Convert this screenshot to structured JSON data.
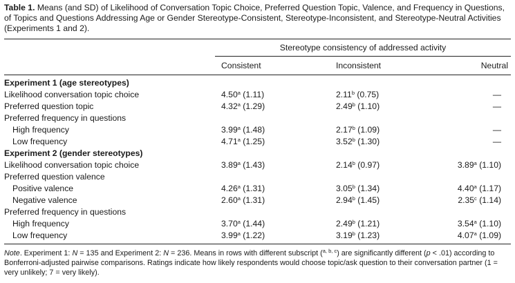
{
  "caption": {
    "label": "Table 1.",
    "text": "Means (and SD) of Likelihood of Conversation Topic Choice, Preferred Question Topic, Valence, and Frequency in Questions, of Topics and Questions Addressing Age or Gender Stereotype-Consistent, Stereotype-Inconsistent, and Stereotype-Neutral Activities (Experiments 1 and 2)."
  },
  "column_spanner": "Stereotype consistency of addressed activity",
  "columns": [
    "Consistent",
    "Inconsistent",
    "Neutral"
  ],
  "rows": [
    {
      "type": "section",
      "label": "Experiment 1 (age stereotypes)"
    },
    {
      "type": "data",
      "label": "Likelihood conversation topic choice",
      "indent": false,
      "cells": [
        {
          "mean": "4.50",
          "sup": "a",
          "sd": "(1.11)"
        },
        {
          "mean": "2.11",
          "sup": "b",
          "sd": "(0.75)"
        },
        {
          "text": "—"
        }
      ]
    },
    {
      "type": "data",
      "label": "Preferred question topic",
      "indent": false,
      "cells": [
        {
          "mean": "4.32",
          "sup": "a",
          "sd": "(1.29)"
        },
        {
          "mean": "2.49",
          "sup": "b",
          "sd": "(1.10)"
        },
        {
          "text": "—"
        }
      ]
    },
    {
      "type": "sub",
      "label": "Preferred frequency in questions"
    },
    {
      "type": "data",
      "label": "High frequency",
      "indent": true,
      "cells": [
        {
          "mean": "3.99",
          "sup": "a",
          "sd": "(1.48)"
        },
        {
          "mean": "2.17",
          "sup": "b",
          "sd": "(1.09)"
        },
        {
          "text": "—"
        }
      ]
    },
    {
      "type": "data",
      "label": "Low frequency",
      "indent": true,
      "cells": [
        {
          "mean": "4.71",
          "sup": "a",
          "sd": "(1.25)"
        },
        {
          "mean": "3.52",
          "sup": "b",
          "sd": "(1.30)"
        },
        {
          "text": "—"
        }
      ]
    },
    {
      "type": "section",
      "label": "Experiment 2 (gender stereotypes)"
    },
    {
      "type": "data",
      "label": "Likelihood conversation topic choice",
      "indent": false,
      "cells": [
        {
          "mean": "3.89",
          "sup": "a",
          "sd": "(1.43)"
        },
        {
          "mean": "2.14",
          "sup": "b",
          "sd": "(0.97)"
        },
        {
          "mean": "3.89",
          "sup": "a",
          "sd": "(1.10)"
        }
      ]
    },
    {
      "type": "sub",
      "label": "Preferred question valence"
    },
    {
      "type": "data",
      "label": "Positive valence",
      "indent": true,
      "cells": [
        {
          "mean": "4.26",
          "sup": "a",
          "sd": "(1.31)"
        },
        {
          "mean": "3.05",
          "sup": "b",
          "sd": "(1.34)"
        },
        {
          "mean": "4.40",
          "sup": "a",
          "sd": "(1.17)"
        }
      ]
    },
    {
      "type": "data",
      "label": "Negative valence",
      "indent": true,
      "cells": [
        {
          "mean": "2.60",
          "sup": "a",
          "sd": "(1.31)"
        },
        {
          "mean": "2.94",
          "sup": "b",
          "sd": "(1.45)"
        },
        {
          "mean": "2.35",
          "sup": "c",
          "sd": "(1.14)"
        }
      ]
    },
    {
      "type": "sub",
      "label": "Preferred frequency in questions"
    },
    {
      "type": "data",
      "label": "High frequency",
      "indent": true,
      "cells": [
        {
          "mean": "3.70",
          "sup": "a",
          "sd": "(1.44)"
        },
        {
          "mean": "2.49",
          "sup": "b",
          "sd": "(1.21)"
        },
        {
          "mean": "3.54",
          "sup": "a",
          "sd": "(1.10)"
        }
      ]
    },
    {
      "type": "data",
      "label": "Low frequency",
      "indent": true,
      "cells": [
        {
          "mean": "3.99",
          "sup": "a",
          "sd": "(1.22)"
        },
        {
          "mean": "3.19",
          "sup": "b",
          "sd": "(1.23)"
        },
        {
          "mean": "4.07",
          "sup": "a",
          "sd": "(1.09)"
        }
      ]
    }
  ],
  "note": {
    "lead": "Note",
    "p1": ". Experiment 1: ",
    "n1_label": "N",
    "p2": " = 135 and Experiment 2: ",
    "n2_label": "N",
    "p3": " = 236. Means in rows with different subscript (",
    "subscripts": "a, b, c",
    "p4": ") are significantly different (",
    "p_label": "p",
    "p5": " < .01) according to Bonferroni-adjusted pairwise comparisons. Ratings indicate how likely respondents would choose topic/ask question to their conversation partner (1 = very unlikely; 7 = very likely)."
  }
}
